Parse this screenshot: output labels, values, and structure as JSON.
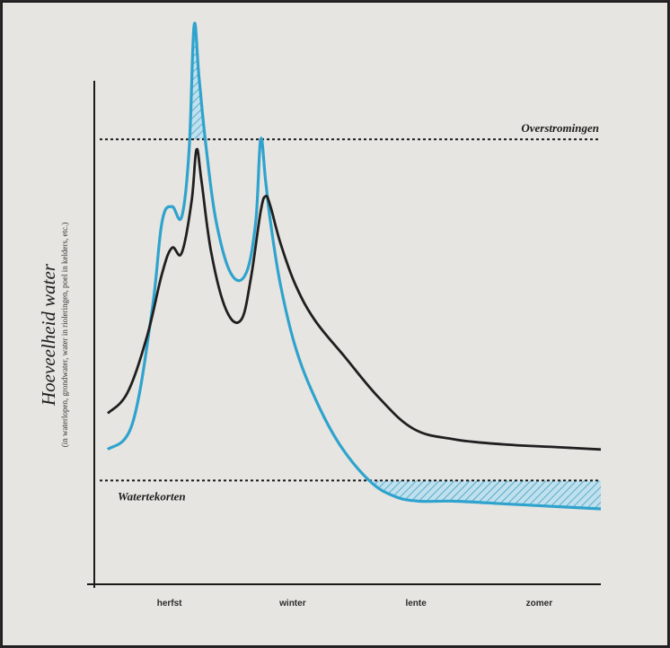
{
  "chart_data": {
    "type": "line",
    "title": "",
    "ylabel": "Hoeveelheid water",
    "ylabel_sub": "(in waterlopen, grondwater, water in rioleringen, poel in kelders, etc.)",
    "x_ticks": [
      "herfst",
      "winter",
      "lente",
      "zomer"
    ],
    "xlim": [
      0,
      100
    ],
    "ylim": [
      0,
      100
    ],
    "thresholds": [
      {
        "label": "Overstromingen",
        "value": 80,
        "label_position": "above-right"
      },
      {
        "label": "Watertekorten",
        "value": 14,
        "label_position": "below-left"
      }
    ],
    "series": [
      {
        "name": "",
        "color": "#2fa3cd",
        "x": [
          0,
          5,
          9,
          11,
          13,
          15,
          16.5,
          17.5,
          18.5,
          20,
          22,
          25,
          28,
          30,
          31,
          32,
          33,
          35,
          38,
          42,
          47,
          53,
          58,
          63,
          70,
          80,
          90,
          100
        ],
        "y": [
          20,
          25,
          47,
          64,
          67,
          65,
          78,
          102,
          92,
          78,
          64,
          54,
          54,
          64,
          80,
          72,
          64,
          52,
          40,
          30,
          21,
          14,
          11,
          10,
          10,
          9.5,
          9,
          8.5
        ]
      },
      {
        "name": "",
        "color": "#1f1f1f",
        "x": [
          0,
          4,
          8,
          11,
          13,
          15,
          17,
          18,
          19,
          21,
          24,
          27,
          29,
          31,
          32,
          33,
          35,
          38,
          42,
          48,
          55,
          62,
          70,
          80,
          90,
          100
        ],
        "y": [
          27,
          31,
          42,
          54,
          59,
          58,
          68,
          78,
          72,
          58,
          47,
          45,
          53,
          66,
          69,
          67,
          60,
          52,
          45,
          38,
          30,
          24,
          22,
          21,
          20.5,
          20
        ]
      }
    ],
    "hatched_regions": [
      "above-overstromingen",
      "below-watertekorten"
    ]
  }
}
